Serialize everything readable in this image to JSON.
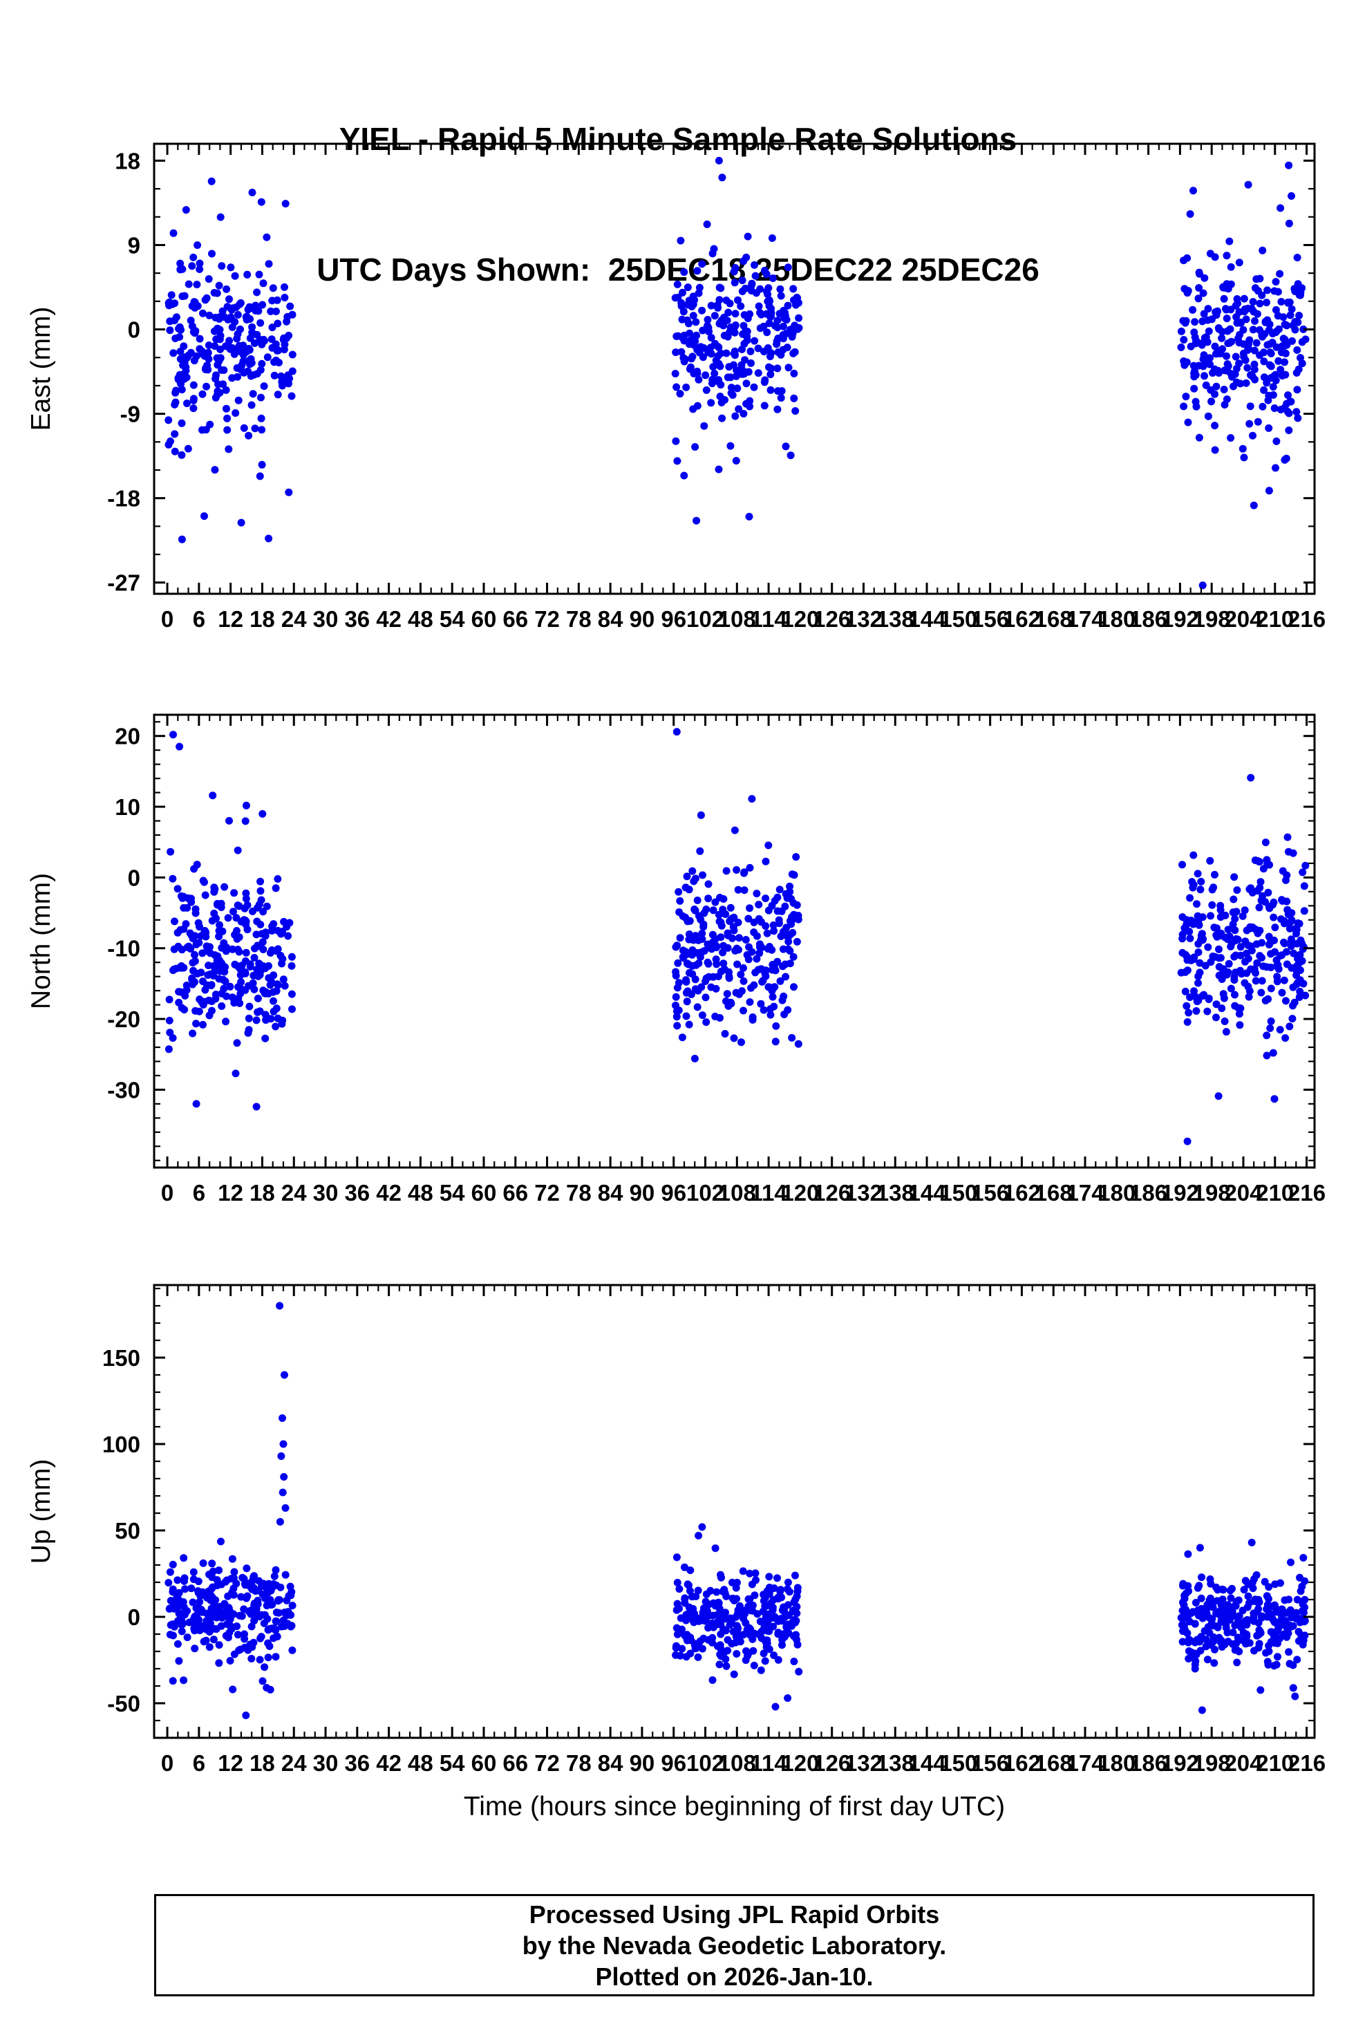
{
  "title": {
    "line1": "YIEL - Rapid 5 Minute Sample Rate Solutions",
    "line2": "UTC Days Shown:  25DEC18 25DEC22 25DEC26"
  },
  "x_axis": {
    "label": "Time (hours since beginning of first day UTC)",
    "lim": [
      -2.5,
      217.5
    ],
    "tick_min": 0,
    "tick_max": 216,
    "major_step": 6,
    "minor_step": 2
  },
  "style": {
    "point_color": "#0000ee",
    "frame_color": "#000000",
    "text_color": "#000000"
  },
  "footer": {
    "line1": "Processed Using JPL Rapid Orbits",
    "line2": "by the Nevada Geodetic Laboratory.",
    "line3": "Plotted on 2026-Jan-10."
  },
  "chart_data": [
    {
      "type": "scatter",
      "ylabel": "East (mm)",
      "ylim": [
        -28.2,
        19.8
      ],
      "yticks": [
        -27,
        -18,
        -9,
        0,
        9,
        18
      ],
      "y_minor_step": 3,
      "x_windows_hours": [
        [
          0,
          24
        ],
        [
          96,
          120
        ],
        [
          192,
          216
        ]
      ],
      "clusters": [
        {
          "x0": 0.2,
          "x1": 23.8,
          "n": 240,
          "mean": -1.5,
          "sd": 4.2,
          "min": -13,
          "max": 11,
          "seed": 11
        },
        {
          "x0": 0.2,
          "x1": 23.8,
          "n": 45,
          "mean": -3,
          "sd": 8.5,
          "min": -21,
          "max": 16,
          "seed": 12
        },
        {
          "x0": 96.2,
          "x1": 119.8,
          "n": 240,
          "mean": -0.8,
          "sd": 4.0,
          "min": -12,
          "max": 11,
          "seed": 13
        },
        {
          "x0": 96.2,
          "x1": 119.8,
          "n": 45,
          "mean": -2,
          "sd": 8.0,
          "min": -20,
          "max": 16,
          "seed": 14
        },
        {
          "x0": 192.2,
          "x1": 215.8,
          "n": 240,
          "mean": -1.5,
          "sd": 4.5,
          "min": -13,
          "max": 11,
          "seed": 15
        },
        {
          "x0": 192.2,
          "x1": 215.8,
          "n": 50,
          "mean": -3,
          "sd": 8.5,
          "min": -20,
          "max": 16,
          "seed": 16
        }
      ],
      "outliers": [
        [
          2.8,
          -22.4
        ],
        [
          19.2,
          -22.3
        ],
        [
          8.4,
          15.8
        ],
        [
          16.1,
          14.6
        ],
        [
          104.6,
          18.0
        ],
        [
          105.2,
          16.2
        ],
        [
          100.3,
          -20.4
        ],
        [
          196.3,
          -27.3
        ],
        [
          212.6,
          17.5
        ],
        [
          194.5,
          14.8
        ],
        [
          208.9,
          -17.2
        ]
      ]
    },
    {
      "type": "scatter",
      "ylabel": "North (mm)",
      "ylim": [
        -41,
        23
      ],
      "yticks": [
        -30,
        -20,
        -10,
        0,
        10,
        20
      ],
      "y_minor_step": 2,
      "x_windows_hours": [
        [
          0,
          24
        ],
        [
          96,
          120
        ],
        [
          192,
          216
        ]
      ],
      "clusters": [
        {
          "x0": 0.2,
          "x1": 23.8,
          "n": 235,
          "mean": -11,
          "sd": 5.5,
          "min": -24,
          "max": 2,
          "seed": 21
        },
        {
          "x0": 0.2,
          "x1": 23.8,
          "n": 50,
          "mean": -9,
          "sd": 9,
          "min": -33,
          "max": 16,
          "seed": 22
        },
        {
          "x0": 96.2,
          "x1": 119.8,
          "n": 235,
          "mean": -11,
          "sd": 5.5,
          "min": -27,
          "max": 3,
          "seed": 23
        },
        {
          "x0": 96.2,
          "x1": 119.8,
          "n": 45,
          "mean": -9,
          "sd": 9,
          "min": -28,
          "max": 12,
          "seed": 24
        },
        {
          "x0": 192.2,
          "x1": 215.8,
          "n": 235,
          "mean": -10.5,
          "sd": 5.5,
          "min": -26,
          "max": 4,
          "seed": 25
        },
        {
          "x0": 192.2,
          "x1": 215.8,
          "n": 50,
          "mean": -8,
          "sd": 9,
          "min": -32,
          "max": 14,
          "seed": 26
        }
      ],
      "outliers": [
        [
          1.1,
          20.2
        ],
        [
          2.3,
          18.5
        ],
        [
          8.6,
          11.6
        ],
        [
          16.9,
          -32.4
        ],
        [
          5.5,
          -32.0
        ],
        [
          96.6,
          20.6
        ],
        [
          101.2,
          8.8
        ],
        [
          193.4,
          -37.3
        ],
        [
          205.4,
          14.1
        ],
        [
          209.9,
          -31.3
        ],
        [
          199.3,
          -30.9
        ]
      ]
    },
    {
      "type": "scatter",
      "ylabel": "Up (mm)",
      "ylim": [
        -70,
        192
      ],
      "yticks": [
        -50,
        0,
        50,
        100,
        150
      ],
      "y_minor_step": 10,
      "x_windows_hours": [
        [
          0,
          24
        ],
        [
          96,
          120
        ],
        [
          192,
          216
        ]
      ],
      "clusters": [
        {
          "x0": 0.2,
          "x1": 23.8,
          "n": 240,
          "mean": 4,
          "sd": 13,
          "min": -30,
          "max": 38,
          "seed": 31
        },
        {
          "x0": 0.2,
          "x1": 23.8,
          "n": 40,
          "mean": 0,
          "sd": 22,
          "min": -45,
          "max": 50,
          "seed": 32
        },
        {
          "x0": 96.2,
          "x1": 119.8,
          "n": 240,
          "mean": -3,
          "sd": 13,
          "min": -35,
          "max": 35,
          "seed": 33
        },
        {
          "x0": 96.2,
          "x1": 119.8,
          "n": 45,
          "mean": -5,
          "sd": 20,
          "min": -50,
          "max": 48,
          "seed": 34
        },
        {
          "x0": 192.2,
          "x1": 215.8,
          "n": 240,
          "mean": -2,
          "sd": 13,
          "min": -33,
          "max": 35,
          "seed": 35
        },
        {
          "x0": 192.2,
          "x1": 215.8,
          "n": 45,
          "mean": -3,
          "sd": 20,
          "min": -52,
          "max": 45,
          "seed": 36
        }
      ],
      "outliers": [
        [
          21.3,
          180
        ],
        [
          22.2,
          140
        ],
        [
          21.8,
          115
        ],
        [
          22.0,
          100
        ],
        [
          21.6,
          93
        ],
        [
          22.1,
          81
        ],
        [
          21.9,
          72
        ],
        [
          22.4,
          63
        ],
        [
          21.4,
          55
        ],
        [
          12.4,
          -42
        ],
        [
          14.9,
          -57
        ],
        [
          101.4,
          52
        ],
        [
          100.7,
          47
        ],
        [
          115.3,
          -52
        ],
        [
          117.6,
          -47
        ],
        [
          196.2,
          -54
        ],
        [
          213.8,
          -46
        ],
        [
          205.6,
          43
        ],
        [
          195.8,
          40
        ]
      ]
    }
  ]
}
